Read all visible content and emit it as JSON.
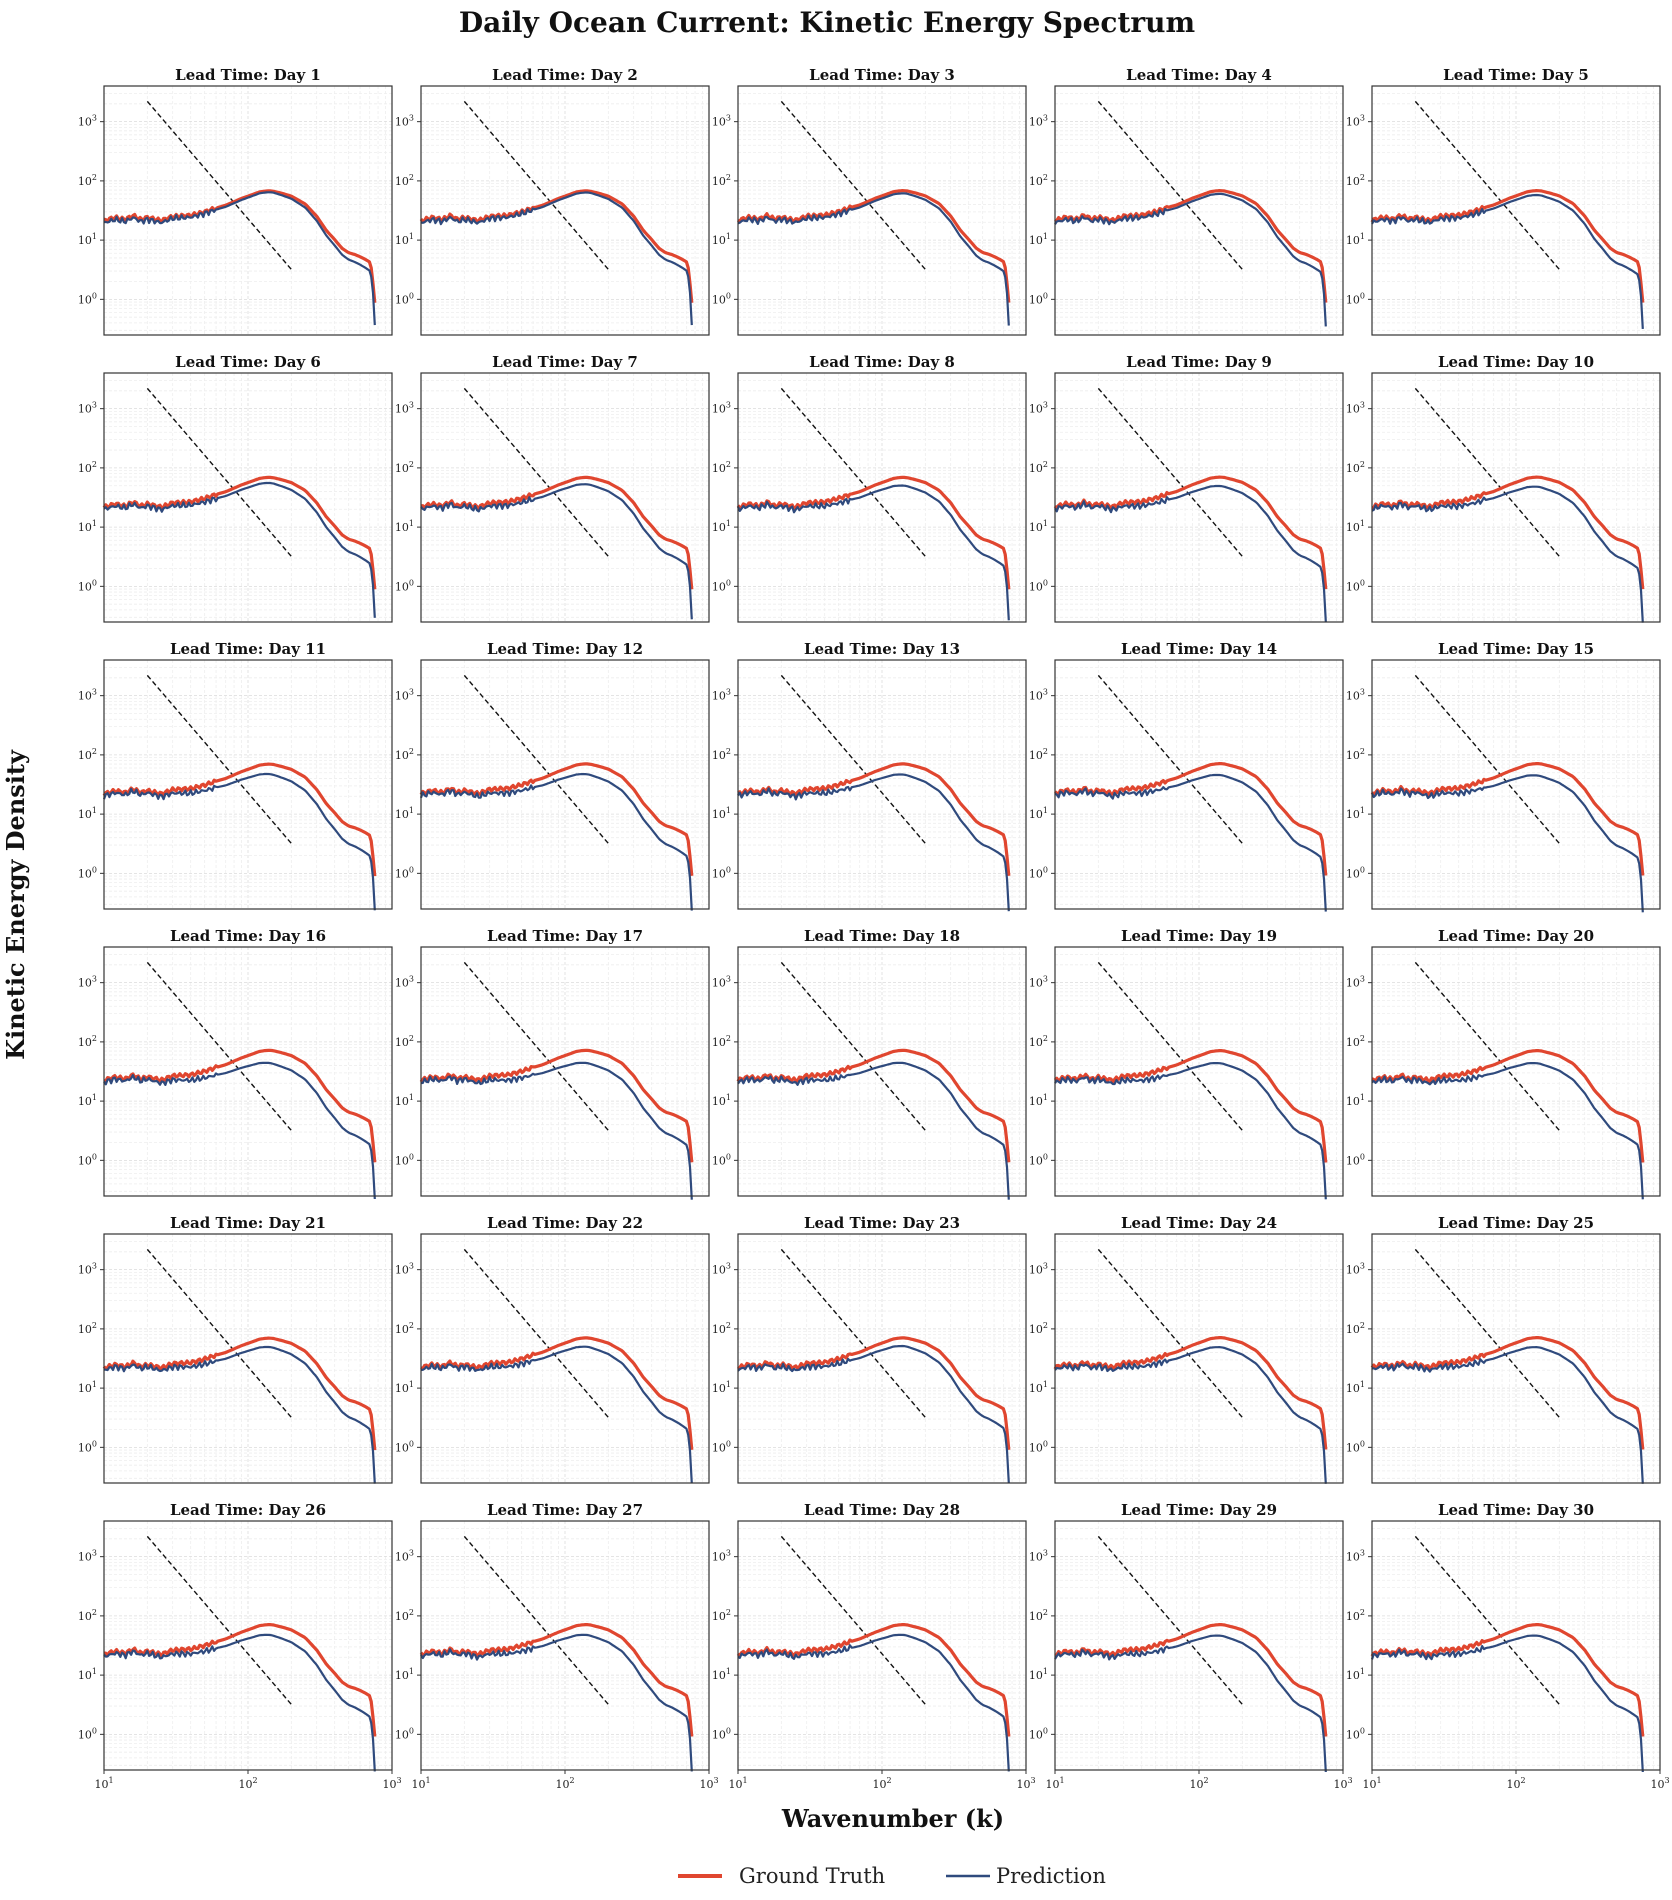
{
  "chart_data": {
    "type": "line",
    "title": "Daily Ocean Current: Kinetic Energy Spectrum",
    "xlabel": "Wavenumber (k)",
    "ylabel": "Kinetic Energy Density",
    "xscale": "log",
    "yscale": "log",
    "xlim": [
      10,
      1000
    ],
    "ylim": [
      0.25,
      4000
    ],
    "xticks": [
      {
        "base": "10",
        "exp": "1"
      },
      {
        "base": "10",
        "exp": "2"
      },
      {
        "base": "10",
        "exp": "3"
      }
    ],
    "yticks": [
      {
        "base": "10",
        "exp": "0"
      },
      {
        "base": "10",
        "exp": "1"
      },
      {
        "base": "10",
        "exp": "2"
      },
      {
        "base": "10",
        "exp": "3"
      }
    ],
    "grid": true,
    "legend": {
      "position": "bottom-center",
      "entries": [
        "Ground Truth",
        "Prediction"
      ]
    },
    "colors": {
      "ground_truth": "#e0462f",
      "prediction": "#2f4a7d",
      "reference": "#111111"
    },
    "reference_line": {
      "style": "dashed",
      "k": [
        20,
        200
      ],
      "E": [
        2200,
        3.2
      ]
    },
    "spectrum_shape": {
      "k": [
        10,
        12,
        14,
        16,
        18,
        20,
        25,
        30,
        40,
        50,
        60,
        70,
        80,
        90,
        100,
        110,
        120,
        130,
        140,
        150,
        170,
        200,
        250,
        300,
        350,
        400,
        450,
        500,
        550,
        600,
        650,
        700,
        720,
        740,
        760
      ],
      "E": [
        22,
        25,
        23,
        27,
        23,
        25,
        22,
        26,
        27,
        31,
        36,
        40,
        46,
        52,
        57,
        62,
        67,
        69,
        70,
        69,
        64,
        57,
        42,
        26,
        15,
        10.5,
        7.5,
        6.3,
        5.9,
        5.4,
        4.9,
        4.4,
        3.4,
        1.8,
        0.9
      ]
    },
    "panels": [
      {
        "title": "Lead Time: Day 1",
        "day": 1,
        "gt_scale": 0.97,
        "pred_ratio_peak": 0.95,
        "pred_ratio_tail": 0.7
      },
      {
        "title": "Lead Time: Day 2",
        "day": 2,
        "gt_scale": 0.97,
        "pred_ratio_peak": 0.94,
        "pred_ratio_tail": 0.7
      },
      {
        "title": "Lead Time: Day 3",
        "day": 3,
        "gt_scale": 0.98,
        "pred_ratio_peak": 0.9,
        "pred_ratio_tail": 0.68
      },
      {
        "title": "Lead Time: Day 4",
        "day": 4,
        "gt_scale": 0.98,
        "pred_ratio_peak": 0.88,
        "pred_ratio_tail": 0.66
      },
      {
        "title": "Lead Time: Day 5",
        "day": 5,
        "gt_scale": 0.98,
        "pred_ratio_peak": 0.84,
        "pred_ratio_tail": 0.6
      },
      {
        "title": "Lead Time: Day 6",
        "day": 6,
        "gt_scale": 0.99,
        "pred_ratio_peak": 0.8,
        "pred_ratio_tail": 0.55
      },
      {
        "title": "Lead Time: Day 7",
        "day": 7,
        "gt_scale": 0.99,
        "pred_ratio_peak": 0.76,
        "pred_ratio_tail": 0.52
      },
      {
        "title": "Lead Time: Day 8",
        "day": 8,
        "gt_scale": 0.99,
        "pred_ratio_peak": 0.72,
        "pred_ratio_tail": 0.5
      },
      {
        "title": "Lead Time: Day 9",
        "day": 9,
        "gt_scale": 1.0,
        "pred_ratio_peak": 0.7,
        "pred_ratio_tail": 0.47
      },
      {
        "title": "Lead Time: Day 10",
        "day": 10,
        "gt_scale": 1.0,
        "pred_ratio_peak": 0.68,
        "pred_ratio_tail": 0.45
      },
      {
        "title": "Lead Time: Day 11",
        "day": 11,
        "gt_scale": 1.0,
        "pred_ratio_peak": 0.67,
        "pred_ratio_tail": 0.44
      },
      {
        "title": "Lead Time: Day 12",
        "day": 12,
        "gt_scale": 1.01,
        "pred_ratio_peak": 0.66,
        "pred_ratio_tail": 0.43
      },
      {
        "title": "Lead Time: Day 13",
        "day": 13,
        "gt_scale": 1.01,
        "pred_ratio_peak": 0.65,
        "pred_ratio_tail": 0.42
      },
      {
        "title": "Lead Time: Day 14",
        "day": 14,
        "gt_scale": 1.02,
        "pred_ratio_peak": 0.63,
        "pred_ratio_tail": 0.41
      },
      {
        "title": "Lead Time: Day 15",
        "day": 15,
        "gt_scale": 1.02,
        "pred_ratio_peak": 0.62,
        "pred_ratio_tail": 0.4
      },
      {
        "title": "Lead Time: Day 16",
        "day": 16,
        "gt_scale": 1.03,
        "pred_ratio_peak": 0.6,
        "pred_ratio_tail": 0.4
      },
      {
        "title": "Lead Time: Day 17",
        "day": 17,
        "gt_scale": 1.03,
        "pred_ratio_peak": 0.6,
        "pred_ratio_tail": 0.39
      },
      {
        "title": "Lead Time: Day 18",
        "day": 18,
        "gt_scale": 1.03,
        "pred_ratio_peak": 0.6,
        "pred_ratio_tail": 0.39
      },
      {
        "title": "Lead Time: Day 19",
        "day": 19,
        "gt_scale": 1.02,
        "pred_ratio_peak": 0.6,
        "pred_ratio_tail": 0.4
      },
      {
        "title": "Lead Time: Day 20",
        "day": 20,
        "gt_scale": 1.02,
        "pred_ratio_peak": 0.6,
        "pred_ratio_tail": 0.4
      },
      {
        "title": "Lead Time: Day 21",
        "day": 21,
        "gt_scale": 1.0,
        "pred_ratio_peak": 0.7,
        "pred_ratio_tail": 0.45
      },
      {
        "title": "Lead Time: Day 22",
        "day": 22,
        "gt_scale": 1.01,
        "pred_ratio_peak": 0.7,
        "pred_ratio_tail": 0.45
      },
      {
        "title": "Lead Time: Day 23",
        "day": 23,
        "gt_scale": 1.01,
        "pred_ratio_peak": 0.72,
        "pred_ratio_tail": 0.46
      },
      {
        "title": "Lead Time: Day 24",
        "day": 24,
        "gt_scale": 1.02,
        "pred_ratio_peak": 0.68,
        "pred_ratio_tail": 0.44
      },
      {
        "title": "Lead Time: Day 25",
        "day": 25,
        "gt_scale": 1.02,
        "pred_ratio_peak": 0.68,
        "pred_ratio_tail": 0.44
      },
      {
        "title": "Lead Time: Day 26",
        "day": 26,
        "gt_scale": 1.02,
        "pred_ratio_peak": 0.66,
        "pred_ratio_tail": 0.43
      },
      {
        "title": "Lead Time: Day 27",
        "day": 27,
        "gt_scale": 1.02,
        "pred_ratio_peak": 0.66,
        "pred_ratio_tail": 0.43
      },
      {
        "title": "Lead Time: Day 28",
        "day": 28,
        "gt_scale": 1.02,
        "pred_ratio_peak": 0.66,
        "pred_ratio_tail": 0.43
      },
      {
        "title": "Lead Time: Day 29",
        "day": 29,
        "gt_scale": 1.02,
        "pred_ratio_peak": 0.64,
        "pred_ratio_tail": 0.42
      },
      {
        "title": "Lead Time: Day 30",
        "day": 30,
        "gt_scale": 1.02,
        "pred_ratio_peak": 0.64,
        "pred_ratio_tail": 0.42
      }
    ]
  }
}
